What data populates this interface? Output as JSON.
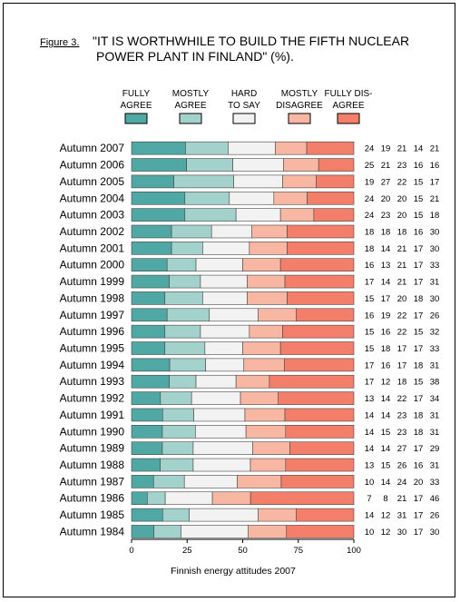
{
  "figure_label": "Figure 3.",
  "title_line1": "\"IT IS WORTHWHILE TO BUILD THE FIFTH NUCLEAR",
  "title_line2": "POWER PLANT IN FINLAND\" (%).",
  "legend": [
    {
      "line1": "FULLY",
      "line2": "AGREE",
      "color": "#4fa8a4"
    },
    {
      "line1": "MOSTLY",
      "line2": "AGREE",
      "color": "#a3d2cd"
    },
    {
      "line1": "HARD",
      "line2": "TO SAY",
      "color": "#f2f2f2"
    },
    {
      "line1": "MOSTLY",
      "line2": "DISAGREE",
      "color": "#f7b7a3"
    },
    {
      "line1": "FULLY DIS-",
      "line2": "AGREE",
      "color": "#f37f6b"
    }
  ],
  "x_label": "Finnish energy attitudes 2007",
  "chart_data": {
    "type": "bar",
    "orientation": "horizontal",
    "stacked": true,
    "xlim": [
      0,
      100
    ],
    "xticks": [
      0,
      25,
      50,
      75,
      100
    ],
    "xlabel": "Finnish energy attitudes 2007",
    "categories": [
      "Autumn 2007",
      "Autumn 2006",
      "Autumn 2005",
      "Autumn 2004",
      "Autumn 2003",
      "Autumn 2002",
      "Autumn 2001",
      "Autumn 2000",
      "Autumn 1999",
      "Autumn 1998",
      "Autumn 1997",
      "Autumn 1996",
      "Autumn 1995",
      "Autumn 1994",
      "Autumn 1993",
      "Autumn 1992",
      "Autumn 1991",
      "Autumn 1990",
      "Autumn 1989",
      "Autumn 1988",
      "Autumn 1987",
      "Autumn 1986",
      "Autumn 1985",
      "Autumn 1984"
    ],
    "series": [
      {
        "name": "FULLY AGREE",
        "values": [
          24,
          25,
          19,
          24,
          24,
          18,
          18,
          16,
          17,
          15,
          16,
          15,
          15,
          17,
          17,
          13,
          14,
          14,
          14,
          13,
          10,
          7,
          14,
          10
        ]
      },
      {
        "name": "MOSTLY AGREE",
        "values": [
          19,
          21,
          27,
          20,
          23,
          18,
          14,
          13,
          14,
          17,
          19,
          16,
          18,
          16,
          12,
          14,
          14,
          15,
          14,
          15,
          14,
          8,
          12,
          12
        ]
      },
      {
        "name": "HARD TO SAY",
        "values": [
          21,
          23,
          22,
          20,
          20,
          18,
          21,
          21,
          21,
          20,
          22,
          22,
          17,
          17,
          18,
          22,
          23,
          23,
          27,
          26,
          24,
          21,
          31,
          30
        ]
      },
      {
        "name": "MOSTLY DISAGREE",
        "values": [
          14,
          16,
          15,
          15,
          15,
          16,
          17,
          17,
          17,
          18,
          17,
          15,
          17,
          18,
          15,
          17,
          18,
          18,
          17,
          16,
          20,
          17,
          17,
          17
        ]
      },
      {
        "name": "FULLY DISAGREE",
        "values": [
          21,
          16,
          17,
          21,
          18,
          30,
          30,
          33,
          31,
          30,
          26,
          32,
          33,
          31,
          38,
          34,
          31,
          31,
          29,
          31,
          33,
          46,
          26,
          30
        ]
      }
    ],
    "grid": false
  }
}
